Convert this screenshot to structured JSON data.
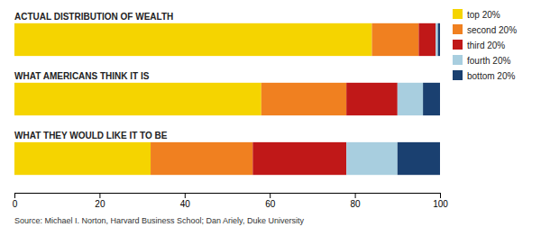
{
  "chart_data": {
    "type": "bar",
    "orientation": "horizontal",
    "stacked": true,
    "categories": [
      "ACTUAL DISTRIBUTION OF WEALTH",
      "WHAT AMERICANS THINK IT IS",
      "WHAT THEY WOULD LIKE IT TO BE"
    ],
    "series": [
      {
        "name": "top 20%",
        "color": "#f5d400",
        "values": [
          84,
          58,
          32
        ]
      },
      {
        "name": "second 20%",
        "color": "#f08020",
        "values": [
          11,
          20,
          24
        ]
      },
      {
        "name": "third 20%",
        "color": "#c01818",
        "values": [
          4,
          12,
          22
        ]
      },
      {
        "name": "fourth 20%",
        "color": "#a8cedf",
        "values": [
          0.5,
          6,
          12
        ]
      },
      {
        "name": "bottom 20%",
        "color": "#1a4070",
        "values": [
          0.5,
          4,
          10
        ]
      }
    ],
    "xlim": [
      0,
      100
    ],
    "xticks": [
      0,
      20,
      40,
      60,
      80,
      100
    ],
    "grid": false,
    "legend": "right",
    "tick_labels": "x",
    "source": "Source: Michael I. Norton, Harvard Business School; Dan Ariely, Duke University"
  }
}
